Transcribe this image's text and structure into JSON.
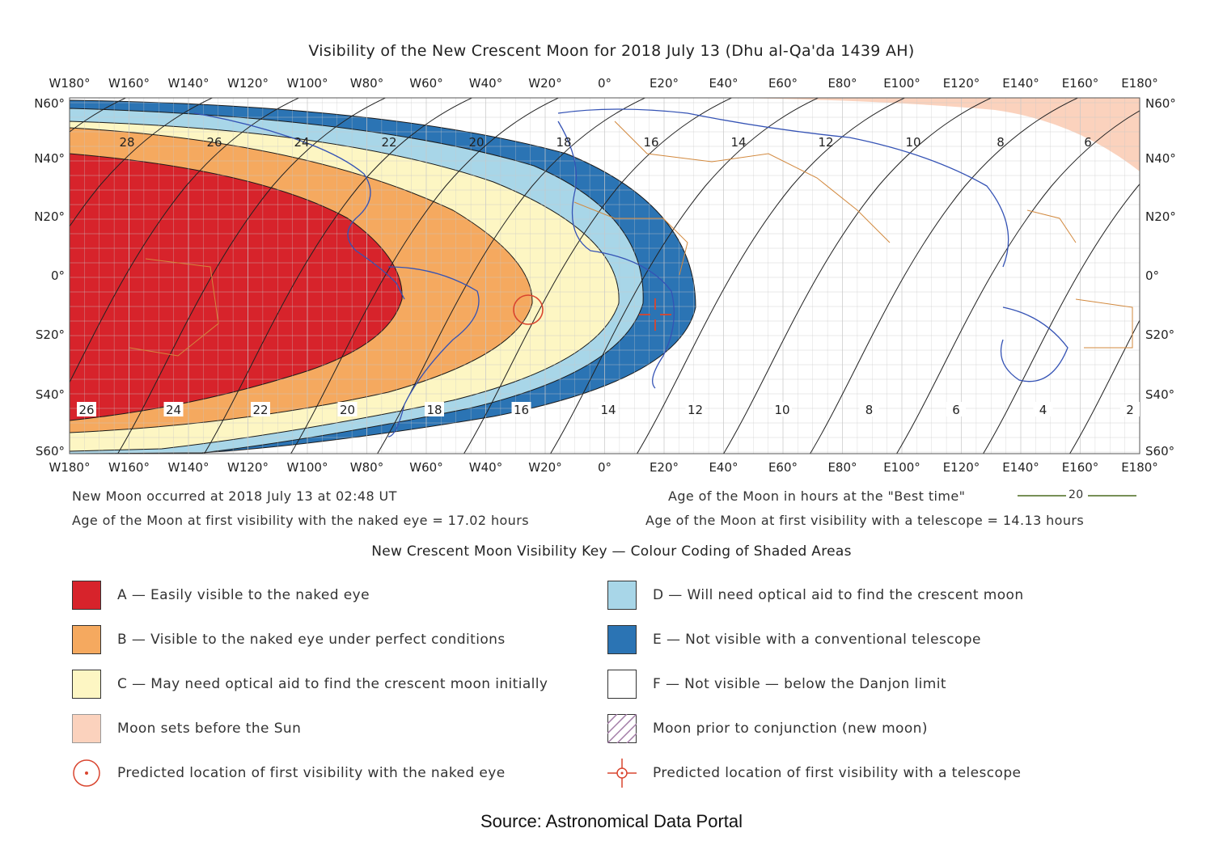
{
  "title": "Visibility of the New Crescent Moon for 2018 July 13 (Dhu al-Qa'da 1439 AH)",
  "longitude_labels": [
    "W180°",
    "W160°",
    "W140°",
    "W120°",
    "W100°",
    "W80°",
    "W60°",
    "W40°",
    "W20°",
    "0°",
    "E20°",
    "E40°",
    "E60°",
    "E80°",
    "E100°",
    "E120°",
    "E140°",
    "E160°",
    "E180°"
  ],
  "latitude_labels": [
    "N60°",
    "N40°",
    "N20°",
    "0°",
    "S20°",
    "S40°",
    "S60°"
  ],
  "age_contour_labels_top": [
    "28",
    "26",
    "24",
    "22",
    "20",
    "18",
    "16",
    "14",
    "12",
    "10",
    "8",
    "6"
  ],
  "age_contour_labels_bottom": [
    "26",
    "24",
    "22",
    "20",
    "18",
    "16",
    "14",
    "12",
    "10",
    "8",
    "6",
    "4",
    "2"
  ],
  "info": {
    "new_moon": "New Moon occurred at 2018 July 13 at 02:48 UT",
    "naked_eye": "Age of the Moon at first visibility with the naked eye = 17.02 hours",
    "best_time_legend": "Age of the Moon in hours at the \"Best time\"",
    "best_time_sample": "20",
    "telescope": "Age of the Moon at first visibility with a telescope = 14.13 hours"
  },
  "key": {
    "title": "New Crescent Moon Visibility Key — Colour Coding of Shaded Areas",
    "items": [
      {
        "id": "A",
        "label": "A — Easily visible to the naked eye",
        "color": "#d7232b"
      },
      {
        "id": "B",
        "label": "B — Visible to the naked eye under perfect conditions",
        "color": "#f5a95f"
      },
      {
        "id": "C",
        "label": "C — May need optical aid to find the crescent moon initially",
        "color": "#fdf6c3"
      },
      {
        "id": "moonset",
        "label": "Moon sets before the Sun",
        "color": "#fbd2bd"
      },
      {
        "id": "naked",
        "label": "Predicted location of first visibility with the naked eye",
        "color": "#d9452f"
      },
      {
        "id": "D",
        "label": "D — Will need optical aid to find the crescent moon",
        "color": "#a8d6e8"
      },
      {
        "id": "E",
        "label": "E — Not visible with a conventional telescope",
        "color": "#2b74b4"
      },
      {
        "id": "F",
        "label": "F — Not visible — below the Danjon limit",
        "color": "#ffffff"
      },
      {
        "id": "prior",
        "label": "Moon prior to conjunction (new moon)",
        "color": "#a27ba6"
      },
      {
        "id": "telescope",
        "label": "Predicted location of first visibility with a telescope",
        "color": "#d9452f"
      }
    ]
  },
  "source": "Source:  Astronomical Data Portal"
}
